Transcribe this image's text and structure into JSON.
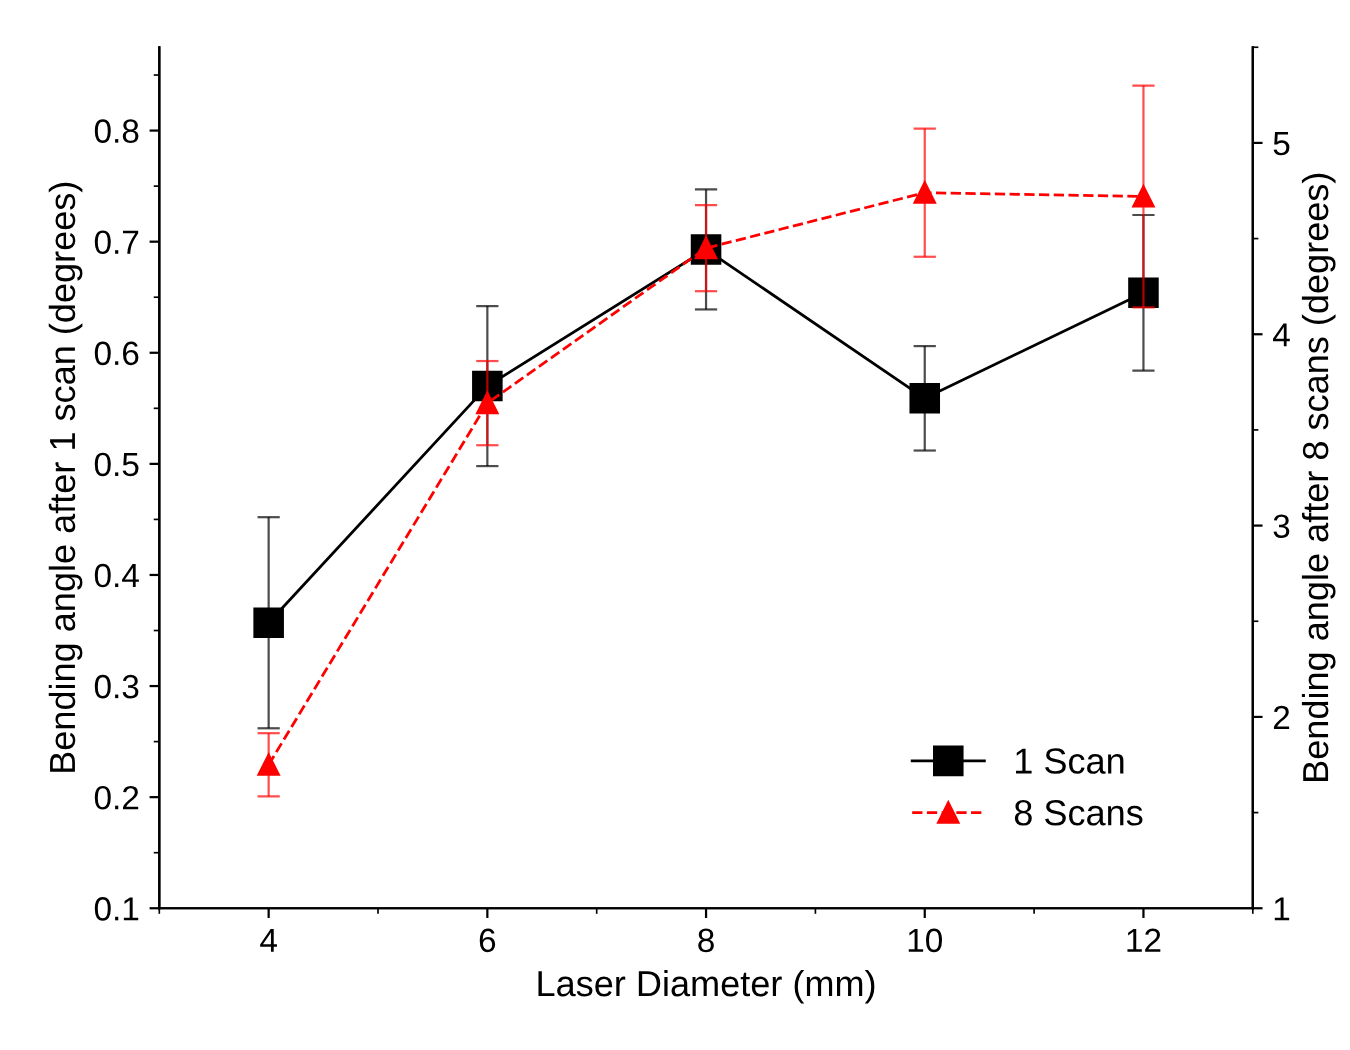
{
  "chart_data": {
    "type": "line",
    "xlabel": "Laser Diameter (mm)",
    "ylabel": "Bending angle after 1 scan (degrees)",
    "y2label": "Bending angle after 8 scans (degrees)",
    "x": [
      4,
      6,
      8,
      10,
      12
    ],
    "series": [
      {
        "name": "1 Scan",
        "color": "#000000",
        "marker": "square",
        "line_style": "solid",
        "values": [
          0.357,
          0.57,
          0.693,
          0.559,
          0.654
        ],
        "errors": [
          0.095,
          0.072,
          0.054,
          0.047,
          0.07
        ]
      },
      {
        "name": "8 Scans",
        "color": "#ff0000",
        "marker": "triangle",
        "line_style": "dashed",
        "axis": "y2",
        "values": [
          1.75,
          3.64,
          4.45,
          4.74,
          4.72
        ],
        "errors": [
          0.165,
          0.22,
          0.225,
          0.335,
          0.58
        ]
      }
    ],
    "xlim": [
      3,
      13
    ],
    "xticks": [
      4,
      6,
      8,
      10,
      12
    ],
    "ylim": [
      0.1,
      0.875
    ],
    "yticks": [
      0.1,
      0.2,
      0.3,
      0.4,
      0.5,
      0.6,
      0.7,
      0.8
    ],
    "y2lim": [
      1,
      5.5
    ],
    "y2ticks": [
      1,
      2,
      3,
      4,
      5
    ],
    "grid": false,
    "legend": "bottom right"
  }
}
